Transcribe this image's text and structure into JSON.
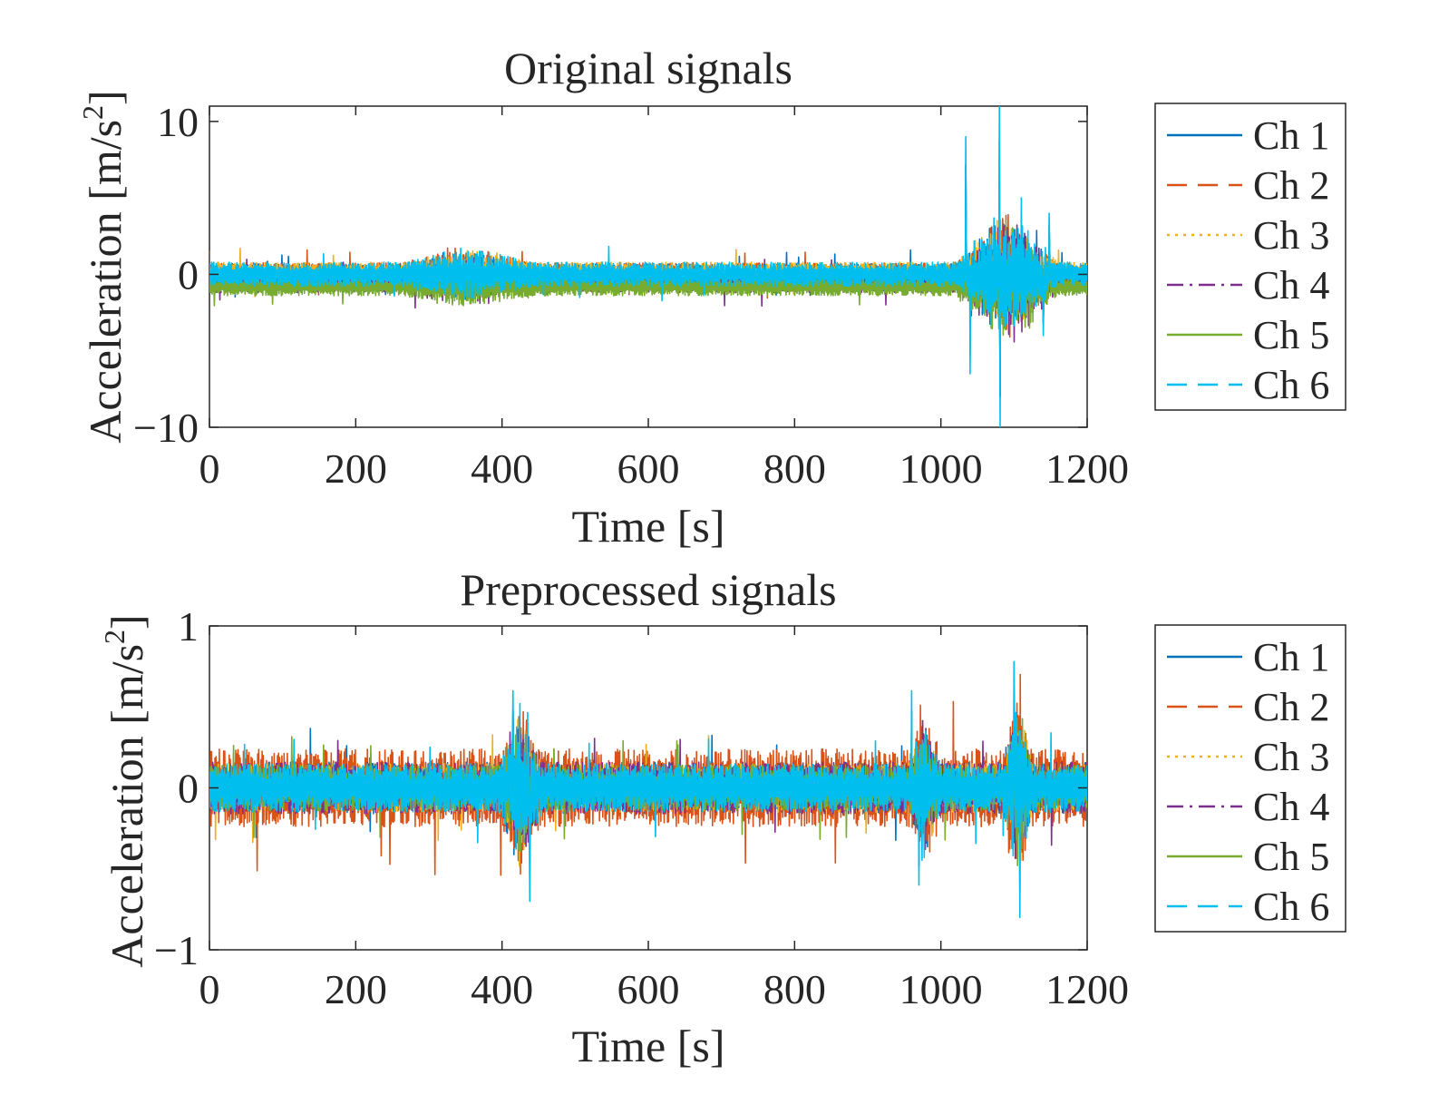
{
  "chart_data": [
    {
      "type": "line",
      "title": "Original signals",
      "xlabel": "Time [s]",
      "ylabel_main": "Acceleration [m/s",
      "ylabel_sup": "2",
      "ylabel_end": "]",
      "xlim": [
        0,
        1200
      ],
      "ylim": [
        -10,
        11
      ],
      "xticks": [
        0,
        200,
        400,
        600,
        800,
        1000,
        1200
      ],
      "xtick_labels": [
        "0",
        "200",
        "400",
        "600",
        "800",
        "1000",
        "1200"
      ],
      "yticks": [
        -10,
        0,
        10
      ],
      "ytick_labels": [
        "−10",
        "0",
        "10"
      ],
      "legend_position": "outside-right",
      "series": [
        {
          "name": "Ch 1",
          "color": "#0072BD",
          "dash": "solid",
          "offset": 0.0,
          "amp": 0.7
        },
        {
          "name": "Ch 2",
          "color": "#D95319",
          "dash": "dashed",
          "offset": 0.05,
          "amp": 0.7
        },
        {
          "name": "Ch 3",
          "color": "#EDB120",
          "dash": "dotted",
          "offset": 0.1,
          "amp": 0.7
        },
        {
          "name": "Ch 4",
          "color": "#7E2F8E",
          "dash": "dashdot",
          "offset": -0.5,
          "amp": 0.7
        },
        {
          "name": "Ch 5",
          "color": "#77AC30",
          "dash": "solid",
          "offset": -0.8,
          "amp": 0.6
        },
        {
          "name": "Ch 6",
          "color": "#00BFEF",
          "dash": "dashed",
          "offset": 0.0,
          "amp": 0.8
        }
      ],
      "events": [
        {
          "t_start": 1020,
          "t_end": 1160,
          "peak": 5.5
        },
        {
          "t_start": 260,
          "t_end": 450,
          "peak": 1.5
        }
      ],
      "peaks": [
        {
          "t": 1034,
          "value": 9.0
        },
        {
          "t": 1040,
          "value": -6.5
        },
        {
          "t": 1080,
          "value": 11.0
        },
        {
          "t": 1081,
          "value": -10.0
        },
        {
          "t": 1110,
          "value": 5.0
        },
        {
          "t": 1148,
          "value": 4.0
        },
        {
          "t": 1140,
          "value": -4.0
        }
      ]
    },
    {
      "type": "line",
      "title": "Preprocessed signals",
      "xlabel": "Time [s]",
      "ylabel_main": "Acceleration [m/s",
      "ylabel_sup": "2",
      "ylabel_end": "]",
      "xlim": [
        0,
        1200
      ],
      "ylim": [
        -1,
        1
      ],
      "xticks": [
        0,
        200,
        400,
        600,
        800,
        1000,
        1200
      ],
      "xtick_labels": [
        "0",
        "200",
        "400",
        "600",
        "800",
        "1000",
        "1200"
      ],
      "yticks": [
        -1,
        0,
        1
      ],
      "ytick_labels": [
        "−1",
        "0",
        "1"
      ],
      "legend_position": "outside-right",
      "series": [
        {
          "name": "Ch 1",
          "color": "#0072BD",
          "dash": "solid",
          "offset": 0.0,
          "amp": 0.16
        },
        {
          "name": "Ch 2",
          "color": "#D95319",
          "dash": "dashed",
          "offset": 0.0,
          "amp": 0.24
        },
        {
          "name": "Ch 3",
          "color": "#EDB120",
          "dash": "dotted",
          "offset": 0.0,
          "amp": 0.15
        },
        {
          "name": "Ch 4",
          "color": "#7E2F8E",
          "dash": "dashdot",
          "offset": 0.0,
          "amp": 0.16
        },
        {
          "name": "Ch 5",
          "color": "#77AC30",
          "dash": "solid",
          "offset": 0.0,
          "amp": 0.14
        },
        {
          "name": "Ch 6",
          "color": "#00BFEF",
          "dash": "dashed",
          "offset": 0.0,
          "amp": 0.15
        }
      ],
      "events": [
        {
          "t_start": 395,
          "t_end": 455,
          "peak": 0.5
        },
        {
          "t_start": 955,
          "t_end": 1000,
          "peak": 0.4
        },
        {
          "t_start": 1085,
          "t_end": 1125,
          "peak": 0.6
        }
      ],
      "peaks": [
        {
          "t": 415,
          "value": 0.6
        },
        {
          "t": 438,
          "value": -0.7
        },
        {
          "t": 960,
          "value": 0.6
        },
        {
          "t": 970,
          "value": -0.6
        },
        {
          "t": 1100,
          "value": 0.78
        },
        {
          "t": 1108,
          "value": -0.8
        }
      ]
    }
  ]
}
